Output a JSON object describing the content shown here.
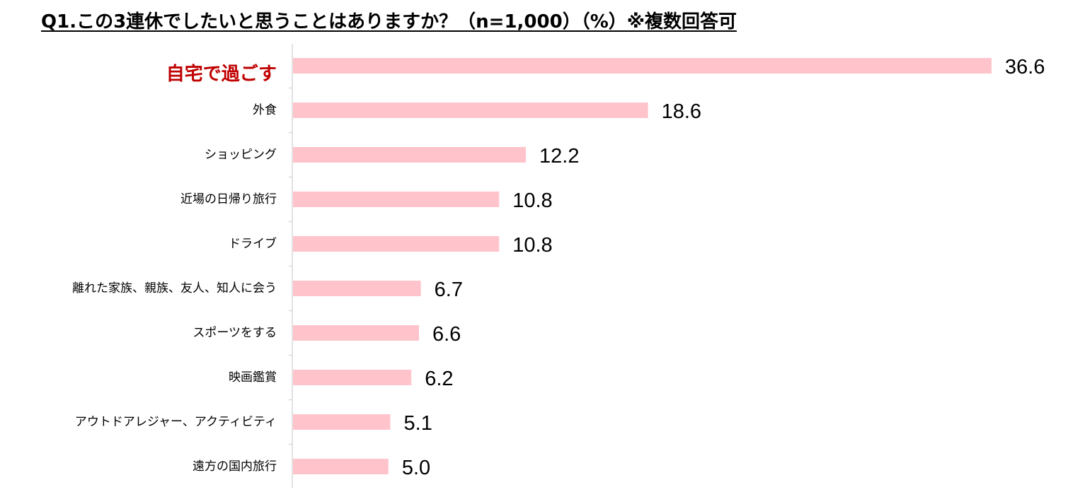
{
  "chart_data": {
    "type": "bar",
    "orientation": "horizontal",
    "title": "Q1.この3連休でしたいと思うことはありますか？（n=1,000）（%）※複数回答可",
    "categories": [
      "自宅で過ごす",
      "外食",
      "ショッピング",
      "近場の日帰り旅行",
      "ドライブ",
      "離れた家族、親族、友人、知人に会う",
      "スポーツをする",
      "映画鑑賞",
      "アウトドアレジャー、アクティビティ",
      "遠方の国内旅行"
    ],
    "values": [
      36.6,
      18.6,
      12.2,
      10.8,
      10.8,
      6.7,
      6.6,
      6.2,
      5.1,
      5.0
    ],
    "value_labels": [
      "36.6",
      "18.6",
      "12.2",
      "10.8",
      "10.8",
      "6.7",
      "6.6",
      "6.2",
      "5.1",
      "5.0"
    ],
    "highlight_category": "自宅で過ごす",
    "xlim": [
      0,
      36.6
    ],
    "grid": false,
    "legend": "none",
    "colors": {
      "bar": "#ffc4cb",
      "highlight_text": "#c00000",
      "axis": "#d9d9d9",
      "text": "#000000"
    }
  }
}
